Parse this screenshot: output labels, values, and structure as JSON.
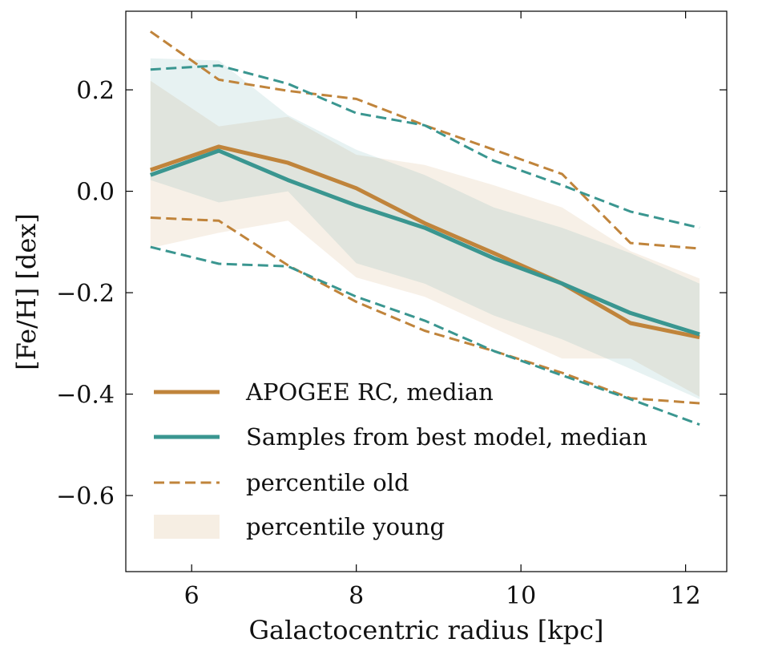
{
  "chart_data": {
    "type": "line",
    "xlabel": "Galactocentric radius [kpc]",
    "ylabel": "[Fe/H] [dex]",
    "xlim": [
      5.2,
      12.5
    ],
    "ylim": [
      -0.75,
      0.355
    ],
    "xticks": [
      6,
      8,
      10,
      12
    ],
    "yticks": [
      0.2,
      0.0,
      -0.2,
      -0.4,
      -0.6
    ],
    "xtick_labels": [
      "6",
      "8",
      "10",
      "12"
    ],
    "ytick_labels": [
      "0.2",
      "0.0",
      "−0.2",
      "−0.4",
      "−0.6"
    ],
    "x": [
      5.5,
      6.33,
      7.17,
      8.0,
      8.83,
      9.67,
      10.5,
      11.33,
      12.17
    ],
    "colors": {
      "apogee": "#c0843b",
      "model": "#3a9690"
    },
    "legend_position": "lower-left",
    "legend": [
      "APOGEE RC, median",
      "Samples from best model, median",
      "percentile old",
      "percentile young"
    ],
    "series": [
      {
        "name": "APOGEE RC, median",
        "style": "solid",
        "color": "#c0843b",
        "values": [
          0.042,
          0.088,
          0.056,
          0.006,
          -0.063,
          -0.122,
          -0.182,
          -0.26,
          -0.288
        ]
      },
      {
        "name": "Samples from best model, median",
        "style": "solid",
        "color": "#3a9690",
        "values": [
          0.032,
          0.08,
          0.022,
          -0.028,
          -0.072,
          -0.132,
          -0.182,
          -0.24,
          -0.282
        ]
      },
      {
        "name": "percentile old",
        "group": "apogee",
        "style": "dashed",
        "color": "#c0843b",
        "upper": [
          0.315,
          0.22,
          0.198,
          0.182,
          0.13,
          0.082,
          0.034,
          -0.102,
          -0.113
        ],
        "lower": [
          -0.052,
          -0.058,
          -0.146,
          -0.218,
          -0.275,
          -0.315,
          -0.358,
          -0.408,
          -0.418
        ]
      },
      {
        "group": "model",
        "style": "dashed",
        "color": "#3a9690",
        "upper": [
          0.24,
          0.248,
          0.212,
          0.154,
          0.13,
          0.06,
          0.012,
          -0.04,
          -0.072
        ],
        "lower": [
          -0.11,
          -0.143,
          -0.148,
          -0.208,
          -0.255,
          -0.315,
          -0.363,
          -0.41,
          -0.46
        ]
      },
      {
        "name": "percentile young",
        "group": "apogee",
        "style": "band",
        "color": "#c0843b",
        "upper": [
          0.218,
          0.128,
          0.147,
          0.072,
          0.052,
          0.012,
          -0.032,
          -0.118,
          -0.172
        ],
        "lower": [
          -0.112,
          -0.082,
          -0.058,
          -0.17,
          -0.208,
          -0.27,
          -0.33,
          -0.33,
          -0.405
        ]
      },
      {
        "group": "model",
        "style": "band",
        "color": "#3a9690",
        "upper": [
          0.262,
          0.258,
          0.15,
          0.082,
          0.032,
          -0.032,
          -0.072,
          -0.122,
          -0.182
        ],
        "lower": [
          0.022,
          -0.022,
          0.0,
          -0.142,
          -0.182,
          -0.245,
          -0.292,
          -0.35,
          -0.41
        ]
      }
    ]
  }
}
